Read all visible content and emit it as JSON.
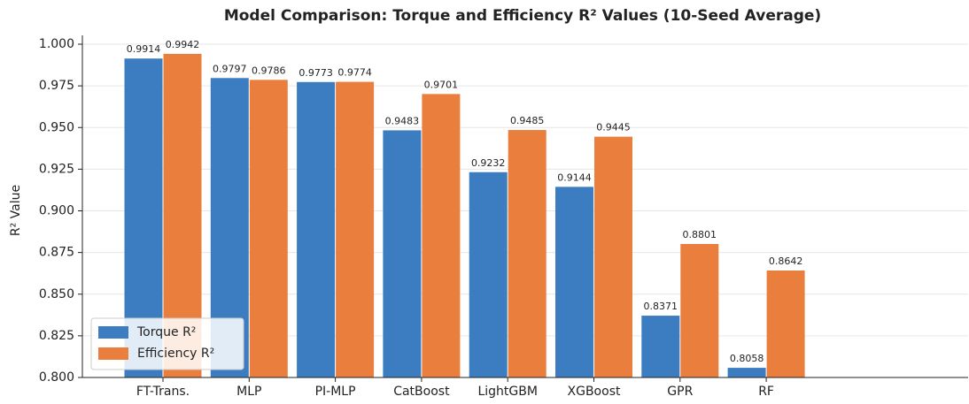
{
  "chart_data": {
    "type": "bar",
    "title": "Model Comparison: Torque and Efficiency R² Values (10-Seed Average)",
    "ylabel": "R² Value",
    "categories": [
      "FT-Trans.",
      "MLP",
      "PI-MLP",
      "CatBoost",
      "LightGBM",
      "XGBoost",
      "GPR",
      "RF"
    ],
    "series": [
      {
        "name": "Torque R²",
        "color": "#3b7dc0",
        "values": [
          0.9914,
          0.9797,
          0.9773,
          0.9483,
          0.9232,
          0.9144,
          0.8371,
          0.8058
        ]
      },
      {
        "name": "Efficiency R²",
        "color": "#e97e3d",
        "values": [
          0.9942,
          0.9786,
          0.9774,
          0.9701,
          0.9485,
          0.9445,
          0.8801,
          0.8642
        ]
      }
    ],
    "ylim": [
      0.8,
      1.0
    ],
    "yticks": [
      {
        "value": 0.8,
        "label": "0.800"
      },
      {
        "value": 0.825,
        "label": "0.825"
      },
      {
        "value": 0.85,
        "label": "0.850"
      },
      {
        "value": 0.875,
        "label": "0.875"
      },
      {
        "value": 0.9,
        "label": "0.900"
      },
      {
        "value": 0.925,
        "label": "0.925"
      },
      {
        "value": 0.95,
        "label": "0.950"
      },
      {
        "value": 0.975,
        "label": "0.975"
      },
      {
        "value": 1.0,
        "label": "1.000"
      }
    ],
    "grid": true,
    "legend": "lower left"
  }
}
